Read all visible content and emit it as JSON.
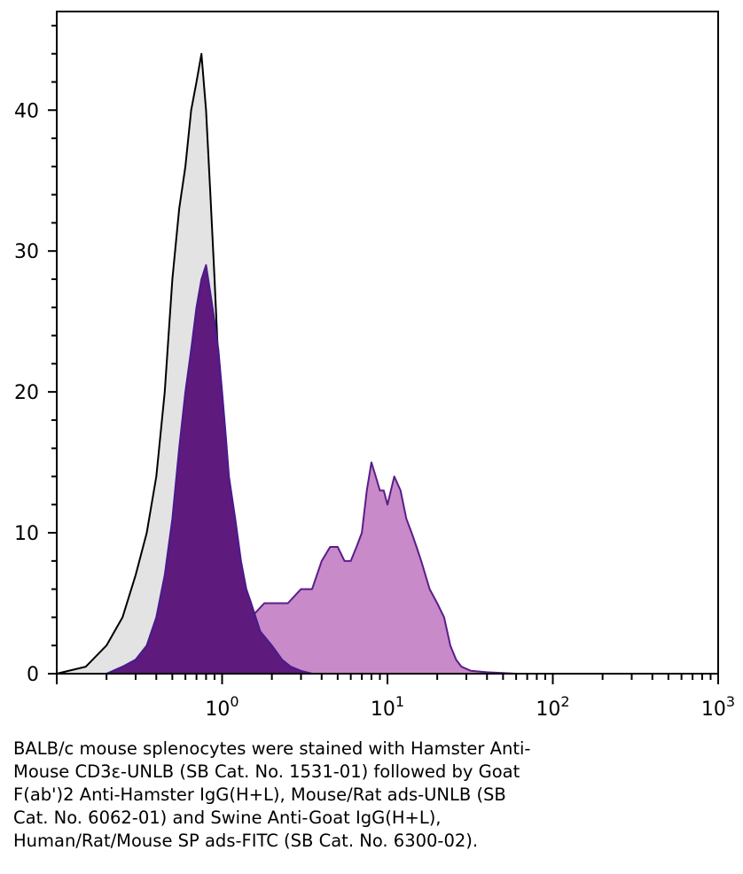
{
  "chart_data": {
    "type": "area",
    "x_scale": "log",
    "xlim": [
      0.1,
      1000
    ],
    "ylim": [
      0,
      47
    ],
    "grid": false,
    "x_ticks": [
      {
        "value": 1,
        "base": "10",
        "exp": "0"
      },
      {
        "value": 10,
        "base": "10",
        "exp": "1"
      },
      {
        "value": 100,
        "base": "10",
        "exp": "2"
      },
      {
        "value": 1000,
        "base": "10",
        "exp": "3"
      }
    ],
    "y_ticks": [
      {
        "value": 0,
        "label": "0"
      },
      {
        "value": 10,
        "label": "10"
      },
      {
        "value": 20,
        "label": "20"
      },
      {
        "value": 30,
        "label": "30"
      },
      {
        "value": 40,
        "label": "40"
      }
    ],
    "series": [
      {
        "fill": "#e3e3e3",
        "stroke": "#000000",
        "x": [
          0.1,
          0.15,
          0.2,
          0.25,
          0.3,
          0.35,
          0.4,
          0.45,
          0.5,
          0.55,
          0.6,
          0.65,
          0.7,
          0.75,
          0.8,
          0.85,
          0.9,
          0.95,
          1.0,
          1.1,
          1.2,
          1.35,
          1.5,
          1.7,
          2.0,
          2.5,
          3.0,
          4.0,
          5.0
        ],
        "y": [
          0,
          0.5,
          2,
          4,
          7,
          10,
          14,
          20,
          28,
          33,
          36,
          40,
          42,
          44,
          40,
          34,
          28,
          22,
          16,
          11,
          7,
          4,
          2,
          1,
          0.5,
          0.2,
          0.1,
          0,
          0
        ]
      },
      {
        "fill": "#c88ac8",
        "stroke": "#5a1d8a",
        "x": [
          1.0,
          1.2,
          1.5,
          1.8,
          2.0,
          2.5,
          3.0,
          3.5,
          4.0,
          4.5,
          5.0,
          5.5,
          6.0,
          6.5,
          7.0,
          7.5,
          8.0,
          8.5,
          9.0,
          9.5,
          10.0,
          11.0,
          12.0,
          13.0,
          14.0,
          15.0,
          16.0,
          18.0,
          20.0,
          22.0,
          24.0,
          26.0,
          28.0,
          32.0,
          40.0,
          60.0,
          100.0
        ],
        "y": [
          0,
          2,
          4,
          5,
          5,
          5,
          6,
          6,
          8,
          9,
          9,
          8,
          8,
          9,
          10,
          13,
          15,
          14,
          13,
          13,
          12,
          14,
          13,
          11,
          10,
          9,
          8,
          6,
          5,
          4,
          2,
          1,
          0.5,
          0.2,
          0.1,
          0,
          0
        ]
      },
      {
        "fill": "#5e1a7d",
        "stroke": "#4a1a8c",
        "x": [
          0.2,
          0.25,
          0.3,
          0.35,
          0.4,
          0.45,
          0.5,
          0.55,
          0.6,
          0.65,
          0.7,
          0.75,
          0.8,
          0.85,
          0.9,
          0.95,
          1.0,
          1.05,
          1.1,
          1.2,
          1.3,
          1.4,
          1.5,
          1.7,
          2.0,
          2.3,
          2.6,
          3.0,
          3.5
        ],
        "y": [
          0,
          0.5,
          1,
          2,
          4,
          7,
          11,
          16,
          20,
          23,
          26,
          28,
          29,
          27,
          25,
          23,
          20,
          17,
          14,
          11,
          8,
          6,
          5,
          3,
          2,
          1,
          0.5,
          0.2,
          0
        ]
      }
    ]
  },
  "caption": [
    "BALB/c mouse splenocytes were stained with Hamster Anti-",
    "Mouse CD3ε-UNLB (SB Cat. No. 1531-01) followed by Goat",
    "F(ab')2 Anti-Hamster IgG(H+L), Mouse/Rat ads-UNLB (SB",
    "Cat. No. 6062-01) and Swine Anti-Goat IgG(H+L),",
    "Human/Rat/Mouse SP ads-FITC (SB Cat. No. 6300-02)."
  ]
}
